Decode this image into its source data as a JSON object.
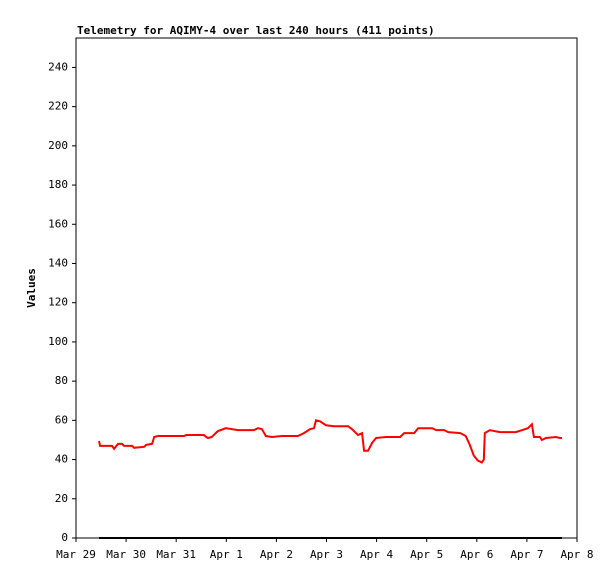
{
  "chart_data": {
    "type": "line",
    "title": "Telemetry for AQIMY-4 over last 240 hours (411 points)",
    "y_label": "Values",
    "xlim": [
      0,
      10
    ],
    "xticks": [
      {
        "value": 0,
        "label": "Mar 29"
      },
      {
        "value": 1,
        "label": "Mar 30"
      },
      {
        "value": 2,
        "label": "Mar 31"
      },
      {
        "value": 3,
        "label": "Apr 1"
      },
      {
        "value": 4,
        "label": "Apr 2"
      },
      {
        "value": 5,
        "label": "Apr 3"
      },
      {
        "value": 6,
        "label": "Apr 4"
      },
      {
        "value": 7,
        "label": "Apr 5"
      },
      {
        "value": 8,
        "label": "Apr 6"
      },
      {
        "value": 9,
        "label": "Apr 7"
      },
      {
        "value": 10,
        "label": "Apr 8"
      }
    ],
    "ylim": [
      0,
      255
    ],
    "yticks": [
      0,
      20,
      40,
      60,
      80,
      100,
      120,
      140,
      160,
      180,
      200,
      220,
      240
    ],
    "grid": false,
    "series": [
      {
        "color": "#ff0000",
        "x": [
          0.46,
          0.48,
          0.72,
          0.76,
          0.84,
          0.92,
          0.96,
          1.12,
          1.16,
          1.36,
          1.4,
          1.52,
          1.56,
          1.64,
          2.16,
          2.2,
          2.55,
          2.63,
          2.71,
          2.83,
          2.99,
          3.23,
          3.55,
          3.63,
          3.71,
          3.79,
          3.91,
          4.11,
          4.43,
          4.55,
          4.67,
          4.75,
          4.79,
          4.87,
          4.99,
          5.15,
          5.43,
          5.51,
          5.63,
          5.71,
          5.75,
          5.83,
          5.91,
          5.99,
          6.19,
          6.47,
          6.55,
          6.75,
          6.83,
          7.11,
          7.19,
          7.35,
          7.43,
          7.67,
          7.78,
          7.86,
          7.94,
          8.02,
          8.1,
          8.14,
          8.16,
          8.26,
          8.46,
          8.78,
          8.9,
          9.02,
          9.1,
          9.14,
          9.26,
          9.3,
          9.38,
          9.58,
          9.66,
          9.7
        ],
        "values": [
          49.5,
          47,
          47,
          45.5,
          48,
          48,
          47,
          47,
          46,
          46.5,
          47.5,
          48,
          51.5,
          52,
          52,
          52.5,
          52.5,
          51,
          51.5,
          54.5,
          56,
          55,
          55,
          56,
          55.5,
          52,
          51.5,
          52,
          52,
          53.5,
          55.5,
          56,
          60,
          59.5,
          57.5,
          57,
          57,
          55.5,
          52.5,
          53.5,
          44.5,
          44.5,
          48.5,
          51,
          51.5,
          51.5,
          53.5,
          53.5,
          56,
          56,
          55,
          55,
          54,
          53.5,
          52,
          47.5,
          42,
          39.5,
          38.5,
          40,
          53.5,
          55,
          54,
          54,
          55,
          56,
          58,
          51.5,
          51.5,
          50,
          51,
          51.5,
          51,
          51
        ]
      },
      {
        "color": "#000000",
        "x": [
          0.46,
          9.7
        ],
        "values": [
          0,
          0
        ]
      }
    ]
  }
}
